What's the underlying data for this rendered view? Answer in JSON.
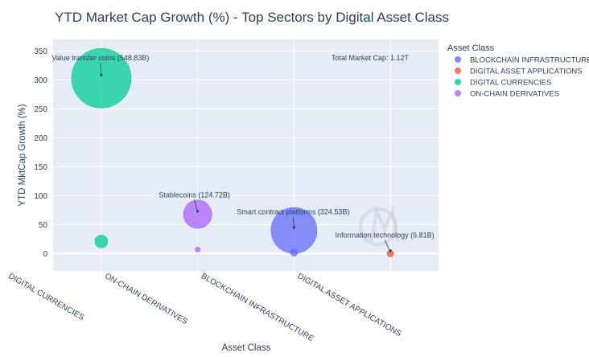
{
  "chart_data": {
    "type": "scatter",
    "title": "YTD Market Cap Growth (%) - Top Sectors by Digital Asset Class",
    "xlabel": "Asset Class",
    "ylabel": "YTD MktCap Growth (%)",
    "categories": [
      "DIGITAL CURRENCIES",
      "ON-CHAIN DERIVATIVES",
      "BLOCKCHAIN INFRASTRUCTURE",
      "DIGITAL ASSET APPLICATIONS"
    ],
    "ylim": [
      -30,
      370
    ],
    "yticks": [
      0,
      50,
      100,
      150,
      200,
      250,
      300,
      350
    ],
    "grid": true,
    "legend": {
      "title": "Asset Class",
      "placement": "right",
      "items": [
        {
          "name": "BLOCKCHAIN INFRASTRUCTURE",
          "color": "#636efa"
        },
        {
          "name": "DIGITAL ASSET APPLICATIONS",
          "color": "#ef553b"
        },
        {
          "name": "DIGITAL CURRENCIES",
          "color": "#00cc96"
        },
        {
          "name": "ON-CHAIN DERIVATIVES",
          "color": "#ab63fa"
        }
      ]
    },
    "series": [
      {
        "name": "BLOCKCHAIN INFRASTRUCTURE",
        "color": "#636efa",
        "points": [
          {
            "x": "BLOCKCHAIN INFRASTRUCTURE",
            "y": 40,
            "size": 324.53
          },
          {
            "x": "BLOCKCHAIN INFRASTRUCTURE",
            "y": 2,
            "size": 8
          }
        ]
      },
      {
        "name": "DIGITAL ASSET APPLICATIONS",
        "color": "#ef553b",
        "points": [
          {
            "x": "DIGITAL ASSET APPLICATIONS",
            "y": 0,
            "size": 6.81
          }
        ]
      },
      {
        "name": "DIGITAL CURRENCIES",
        "color": "#00cc96",
        "points": [
          {
            "x": "DIGITAL CURRENCIES",
            "y": 303,
            "size": 548.83
          },
          {
            "x": "DIGITAL CURRENCIES",
            "y": 21,
            "size": 25
          }
        ]
      },
      {
        "name": "ON-CHAIN DERIVATIVES",
        "color": "#ab63fa",
        "points": [
          {
            "x": "ON-CHAIN DERIVATIVES",
            "y": 68,
            "size": 124.72
          },
          {
            "x": "ON-CHAIN DERIVATIVES",
            "y": 7,
            "size": 1
          }
        ]
      }
    ],
    "annotations": [
      {
        "text": "Value transfer coins (548.83B)",
        "x": "DIGITAL CURRENCIES",
        "y": 303
      },
      {
        "text": "Stablecoins (124.72B)",
        "x": "ON-CHAIN DERIVATIVES",
        "y": 68
      },
      {
        "text": "Smart contract platforms (324.53B)",
        "x": "BLOCKCHAIN INFRASTRUCTURE",
        "y": 40
      },
      {
        "text": "Information technology (6.81B)",
        "x": "DIGITAL ASSET APPLICATIONS",
        "y": 0
      }
    ],
    "total_label": "Total Market Cap: 1.12T"
  }
}
